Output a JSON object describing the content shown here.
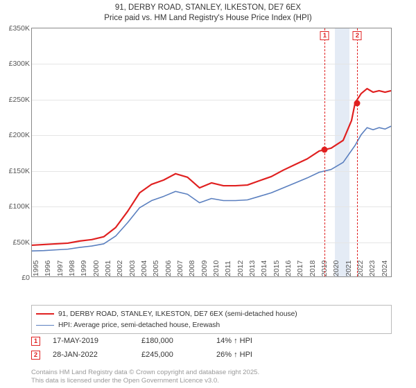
{
  "titles": {
    "line1": "91, DERBY ROAD, STANLEY, ILKESTON, DE7 6EX",
    "line2": "Price paid vs. HM Land Registry's House Price Index (HPI)"
  },
  "chart": {
    "type": "line",
    "background_color": "#ffffff",
    "grid_color": "#e5e5e5",
    "border_color": "#888888",
    "y": {
      "min": 0,
      "max": 350000,
      "ticks": [
        0,
        50000,
        100000,
        150000,
        200000,
        250000,
        300000,
        350000
      ],
      "labels": [
        "£0",
        "£50K",
        "£100K",
        "£150K",
        "£200K",
        "£250K",
        "£300K",
        "£350K"
      ],
      "label_fontsize": 10.5
    },
    "x": {
      "min": 1995,
      "max": 2025,
      "ticks": [
        1995,
        1996,
        1997,
        1998,
        1999,
        2000,
        2001,
        2002,
        2003,
        2004,
        2005,
        2006,
        2007,
        2008,
        2009,
        2010,
        2011,
        2012,
        2013,
        2014,
        2015,
        2016,
        2017,
        2018,
        2019,
        2020,
        2021,
        2022,
        2023,
        2024
      ],
      "label_fontsize": 10.5
    },
    "shaded_band": {
      "from": 2020.2,
      "to": 2021.4,
      "color": "#e4ebf5"
    },
    "dash_lines": [
      {
        "x": 2019.37,
        "color": "#e02020"
      },
      {
        "x": 2022.08,
        "color": "#e02020"
      }
    ],
    "series": [
      {
        "name": "price_paid",
        "label": "91, DERBY ROAD, STANLEY, ILKESTON, DE7 6EX (semi-detached house)",
        "color": "#e02020",
        "line_width": 2.2,
        "points": [
          [
            1995,
            44000
          ],
          [
            1996,
            45000
          ],
          [
            1997,
            46000
          ],
          [
            1998,
            47000
          ],
          [
            1999,
            50000
          ],
          [
            2000,
            52000
          ],
          [
            2001,
            56000
          ],
          [
            2002,
            69000
          ],
          [
            2003,
            92000
          ],
          [
            2004,
            118000
          ],
          [
            2005,
            130000
          ],
          [
            2006,
            136000
          ],
          [
            2007,
            145000
          ],
          [
            2008,
            140000
          ],
          [
            2009,
            125000
          ],
          [
            2010,
            132000
          ],
          [
            2011,
            128000
          ],
          [
            2012,
            128000
          ],
          [
            2013,
            129000
          ],
          [
            2014,
            135000
          ],
          [
            2015,
            141000
          ],
          [
            2016,
            150000
          ],
          [
            2017,
            158000
          ],
          [
            2018,
            166000
          ],
          [
            2019,
            177000
          ],
          [
            2020,
            181000
          ],
          [
            2021,
            192000
          ],
          [
            2021.7,
            220000
          ],
          [
            2022,
            245000
          ],
          [
            2022.5,
            258000
          ],
          [
            2023,
            265000
          ],
          [
            2023.5,
            260000
          ],
          [
            2024,
            262000
          ],
          [
            2024.5,
            260000
          ],
          [
            2025,
            262000
          ]
        ]
      },
      {
        "name": "hpi",
        "label": "HPI: Average price, semi-detached house, Erewash",
        "color": "#5a7fbf",
        "line_width": 1.6,
        "points": [
          [
            1995,
            36000
          ],
          [
            1996,
            36500
          ],
          [
            1997,
            37500
          ],
          [
            1998,
            38500
          ],
          [
            1999,
            41000
          ],
          [
            2000,
            43000
          ],
          [
            2001,
            46000
          ],
          [
            2002,
            57000
          ],
          [
            2003,
            76000
          ],
          [
            2004,
            97000
          ],
          [
            2005,
            107000
          ],
          [
            2006,
            113000
          ],
          [
            2007,
            120000
          ],
          [
            2008,
            116000
          ],
          [
            2009,
            104000
          ],
          [
            2010,
            110000
          ],
          [
            2011,
            107000
          ],
          [
            2012,
            107000
          ],
          [
            2013,
            108000
          ],
          [
            2014,
            113000
          ],
          [
            2015,
            118000
          ],
          [
            2016,
            125000
          ],
          [
            2017,
            132000
          ],
          [
            2018,
            139000
          ],
          [
            2019,
            147000
          ],
          [
            2020,
            151000
          ],
          [
            2021,
            161000
          ],
          [
            2022,
            185000
          ],
          [
            2022.5,
            200000
          ],
          [
            2023,
            210000
          ],
          [
            2023.5,
            207000
          ],
          [
            2024,
            210000
          ],
          [
            2024.5,
            208000
          ],
          [
            2025,
            212000
          ]
        ]
      }
    ],
    "sale_markers": [
      {
        "n": "1",
        "x": 2019.37,
        "y": 180000
      },
      {
        "n": "2",
        "x": 2022.08,
        "y": 245000
      }
    ]
  },
  "legend": {
    "rows": [
      {
        "color": "#e02020",
        "width": 2.2,
        "label": "91, DERBY ROAD, STANLEY, ILKESTON, DE7 6EX (semi-detached house)"
      },
      {
        "color": "#5a7fbf",
        "width": 1.6,
        "label": "HPI: Average price, semi-detached house, Erewash"
      }
    ]
  },
  "sales": {
    "rows": [
      {
        "n": "1",
        "date": "17-MAY-2019",
        "price": "£180,000",
        "delta": "14% ↑ HPI"
      },
      {
        "n": "2",
        "date": "28-JAN-2022",
        "price": "£245,000",
        "delta": "26% ↑ HPI"
      }
    ]
  },
  "footer": {
    "line1": "Contains HM Land Registry data © Crown copyright and database right 2025.",
    "line2": "This data is licensed under the Open Government Licence v3.0."
  }
}
